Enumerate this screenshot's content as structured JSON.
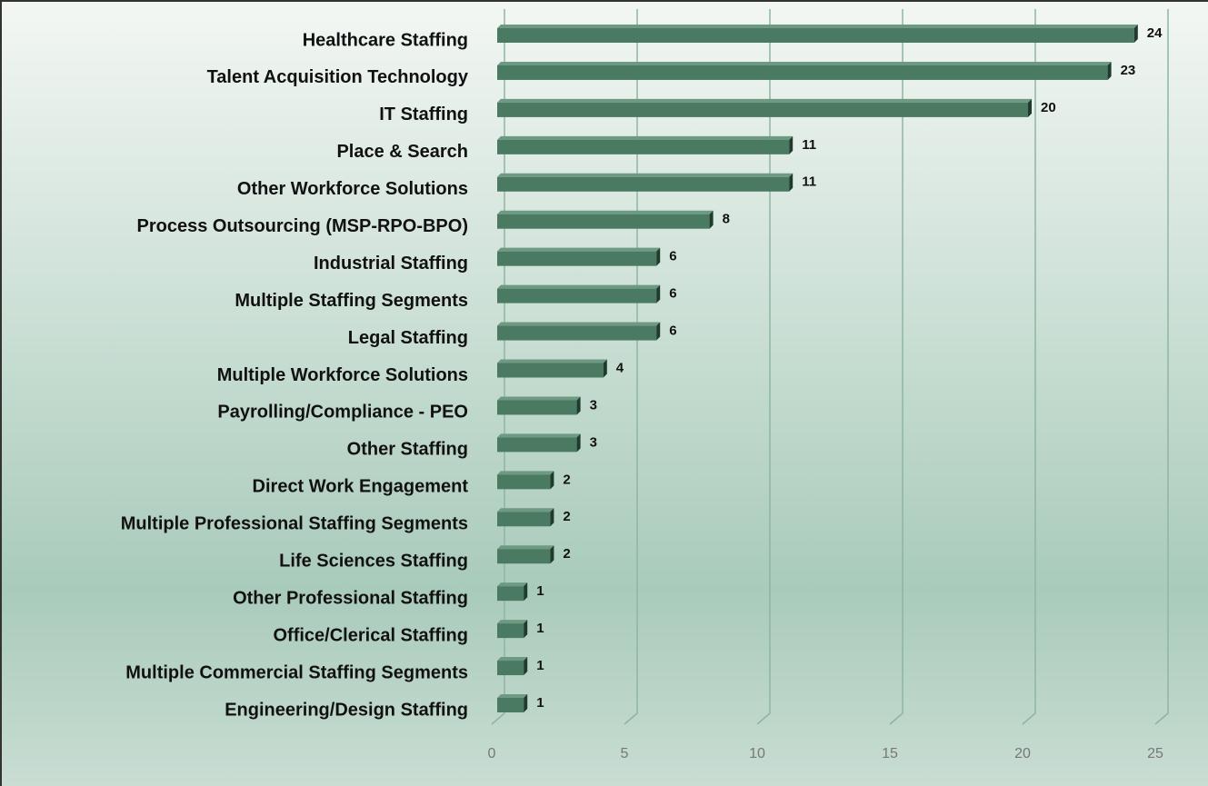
{
  "chart_data": {
    "type": "bar",
    "orientation": "horizontal",
    "categories": [
      "Healthcare Staffing",
      "Talent Acquisition Technology",
      "IT Staffing",
      "Place & Search",
      "Other Workforce Solutions",
      "Process Outsourcing (MSP-RPO-BPO)",
      "Industrial Staffing",
      "Multiple Staffing Segments",
      "Legal Staffing",
      "Multiple Workforce Solutions",
      "Payrolling/Compliance - PEO",
      "Other Staffing",
      "Direct Work Engagement",
      "Multiple Professional Staffing Segments",
      "Life Sciences Staffing",
      "Other Professional Staffing",
      "Office/Clerical Staffing",
      "Multiple Commercial Staffing Segments",
      "Engineering/Design Staffing"
    ],
    "values": [
      24,
      23,
      20,
      11,
      11,
      8,
      6,
      6,
      6,
      4,
      3,
      3,
      2,
      2,
      2,
      1,
      1,
      1,
      1
    ],
    "color": "#4a7a62",
    "xlim": [
      0,
      25
    ],
    "xticks": [
      0,
      5,
      10,
      15,
      20,
      25
    ],
    "grid": true
  }
}
